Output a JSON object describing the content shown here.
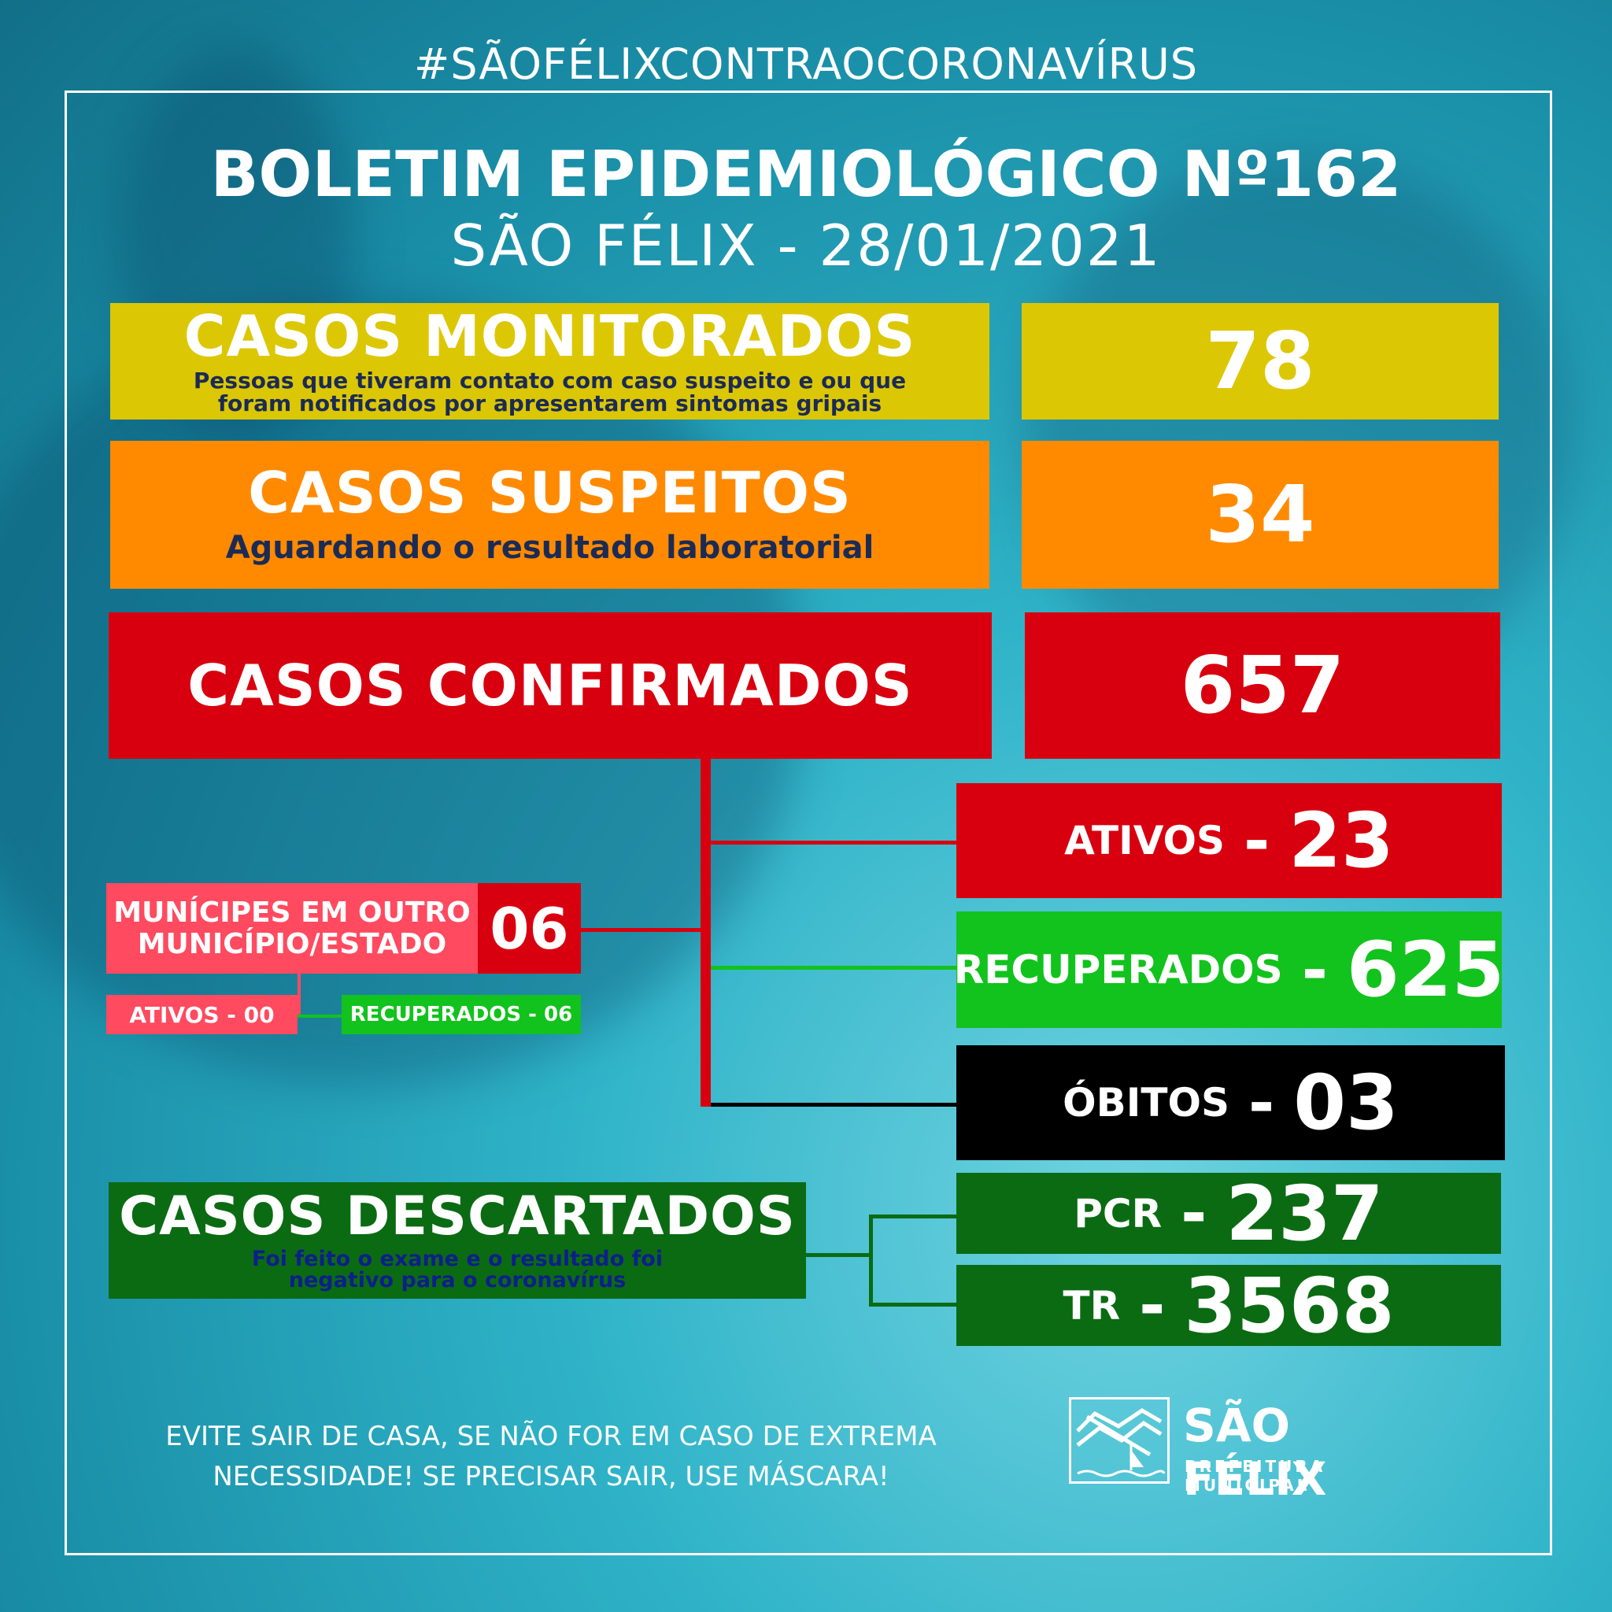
{
  "hashtag": "#SÃOFÉLIXCONTRAOCORONAVÍRUS",
  "header": {
    "title": "BOLETIM EPIDEMIOLÓGICO Nº162",
    "subtitle": "SÃO FÉLIX - 28/01/2021"
  },
  "monitorados": {
    "label": "CASOS MONITORADOS",
    "desc_line1": "Pessoas que tiveram contato com caso suspeito e ou que",
    "desc_line2": "foram notificados por apresentarem sintomas gripais",
    "value": "78"
  },
  "suspeitos": {
    "label": "CASOS SUSPEITOS",
    "desc": "Aguardando o resultado laboratorial",
    "value": "34"
  },
  "confirmados": {
    "label": "CASOS CONFIRMADOS",
    "value": "657",
    "ativos": {
      "label": "ATIVOS",
      "sep": "-",
      "value": "23"
    },
    "recuperados": {
      "label": "RECUPERADOS",
      "sep": "-",
      "value": "625"
    },
    "obitos": {
      "label": "ÓBITOS",
      "sep": "-",
      "value": "03"
    }
  },
  "outro_municipio": {
    "label_line1": "MUNÍCIPES EM OUTRO",
    "label_line2": "MUNICÍPIO/ESTADO",
    "value": "06",
    "ativos": "ATIVOS - 00",
    "recuperados": "RECUPERADOS - 06"
  },
  "descartados": {
    "label": "CASOS DESCARTADOS",
    "desc_line1": "Foi feito o exame e o resultado foi",
    "desc_line2": "negativo para o coronavírus",
    "pcr": {
      "label": "PCR",
      "sep": "-",
      "value": "237"
    },
    "tr": {
      "label": "TR",
      "sep": "-",
      "value": "3568"
    }
  },
  "footer": {
    "line1": "EVITE SAIR DE CASA, SE NÃO FOR EM CASO DE EXTREMA",
    "line2": "NECESSIDADE! SE PRECISAR SAIR, USE MÁSCARA!"
  },
  "logo": {
    "name": "SÃO FÉLIX",
    "sub": "PREFEITURA MUNICIPAL"
  },
  "colors": {
    "yellow": "#dcc705",
    "orange": "#ff8a00",
    "red": "#d8000f",
    "green": "#12c21d",
    "black": "#000000",
    "dark_green": "#0b6b13",
    "pink": "#ff4a60"
  }
}
